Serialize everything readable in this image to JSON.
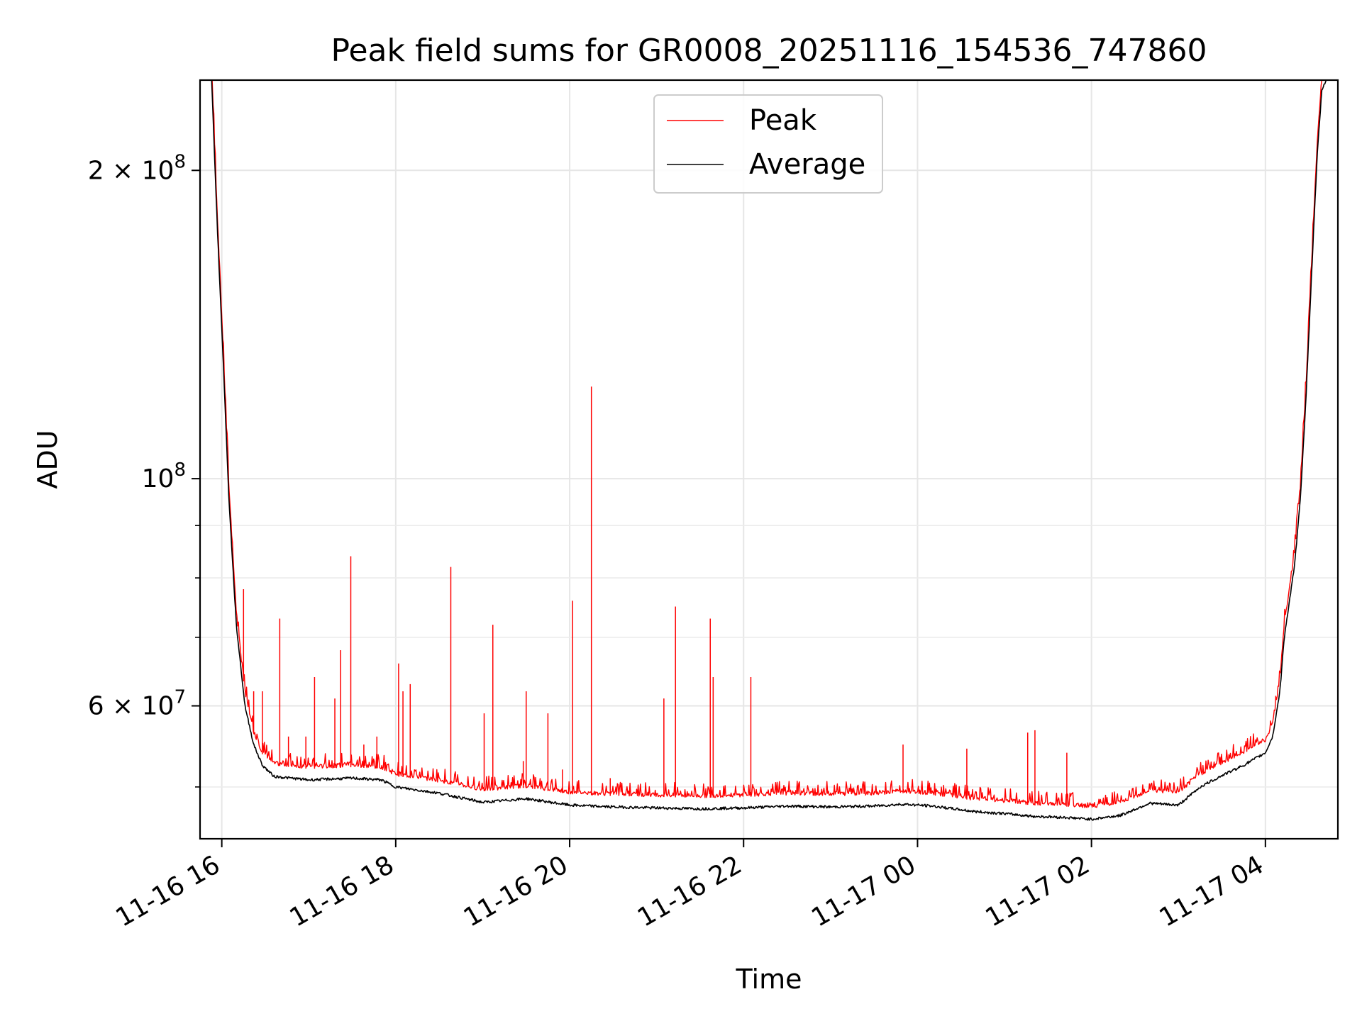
{
  "chart_data": {
    "type": "line",
    "title": "Peak field sums for GR0008_20251116_154536_747860",
    "xlabel": "Time",
    "ylabel": "ADU",
    "y_scale": "log",
    "xlim": [
      "2025-11-16T15:45",
      "2025-11-17T04:50"
    ],
    "ylim": [
      44500000,
      245000000
    ],
    "grid": true,
    "legend_position": "top-center",
    "x_ticks": [
      {
        "t": "2025-11-16T16:00",
        "label": "11-16 16"
      },
      {
        "t": "2025-11-16T18:00",
        "label": "11-16 18"
      },
      {
        "t": "2025-11-16T20:00",
        "label": "11-16 20"
      },
      {
        "t": "2025-11-16T22:00",
        "label": "11-16 22"
      },
      {
        "t": "2025-11-17T00:00",
        "label": "11-17 00"
      },
      {
        "t": "2025-11-17T02:00",
        "label": "11-17 02"
      },
      {
        "t": "2025-11-17T04:00",
        "label": "11-17 04"
      }
    ],
    "y_ticks_major": [
      {
        "v": 60000000,
        "mantissa": "6",
        "exp": "7"
      },
      {
        "v": 100000000,
        "mantissa": "",
        "exp": "8"
      },
      {
        "v": 200000000,
        "mantissa": "2",
        "exp": "8"
      }
    ],
    "y_ticks_minor": [
      50000000,
      70000000,
      80000000,
      90000000
    ],
    "series": [
      {
        "name": "Average",
        "color": "#000000",
        "points": [
          [
            "2025-11-16T15:53",
            245000000
          ],
          [
            "2025-11-16T15:57",
            175000000
          ],
          [
            "2025-11-16T16:01",
            130000000
          ],
          [
            "2025-11-16T16:05",
            95000000
          ],
          [
            "2025-11-16T16:10",
            72000000
          ],
          [
            "2025-11-16T16:16",
            60000000
          ],
          [
            "2025-11-16T16:22",
            55000000
          ],
          [
            "2025-11-16T16:28",
            52500000
          ],
          [
            "2025-11-16T16:36",
            51200000
          ],
          [
            "2025-11-16T17:00",
            50800000
          ],
          [
            "2025-11-16T17:30",
            51000000
          ],
          [
            "2025-11-16T17:50",
            50800000
          ],
          [
            "2025-11-16T18:00",
            50000000
          ],
          [
            "2025-11-16T18:30",
            49300000
          ],
          [
            "2025-11-16T19:00",
            48300000
          ],
          [
            "2025-11-16T19:30",
            48700000
          ],
          [
            "2025-11-16T20:00",
            48000000
          ],
          [
            "2025-11-16T20:30",
            47800000
          ],
          [
            "2025-11-16T21:00",
            47700000
          ],
          [
            "2025-11-16T21:30",
            47600000
          ],
          [
            "2025-11-16T22:00",
            47700000
          ],
          [
            "2025-11-16T22:30",
            47900000
          ],
          [
            "2025-11-16T23:00",
            47800000
          ],
          [
            "2025-11-16T23:30",
            47900000
          ],
          [
            "2025-11-16T23:50",
            48100000
          ],
          [
            "2025-11-17T00:10",
            47900000
          ],
          [
            "2025-11-17T00:40",
            47300000
          ],
          [
            "2025-11-17T01:00",
            47100000
          ],
          [
            "2025-11-17T01:20",
            46800000
          ],
          [
            "2025-11-17T01:40",
            46700000
          ],
          [
            "2025-11-17T02:00",
            46500000
          ],
          [
            "2025-11-17T02:20",
            46900000
          ],
          [
            "2025-11-17T02:40",
            48200000
          ],
          [
            "2025-11-17T03:00",
            48000000
          ],
          [
            "2025-11-17T03:15",
            50000000
          ],
          [
            "2025-11-17T03:30",
            51300000
          ],
          [
            "2025-11-17T03:45",
            52500000
          ],
          [
            "2025-11-17T04:00",
            54000000
          ],
          [
            "2025-11-17T04:05",
            56000000
          ],
          [
            "2025-11-17T04:10",
            62000000
          ],
          [
            "2025-11-17T04:13",
            70000000
          ],
          [
            "2025-11-17T04:20",
            82000000
          ],
          [
            "2025-11-17T04:24",
            95000000
          ],
          [
            "2025-11-17T04:28",
            120000000
          ],
          [
            "2025-11-17T04:32",
            160000000
          ],
          [
            "2025-11-17T04:36",
            210000000
          ],
          [
            "2025-11-17T04:39",
            240000000
          ],
          [
            "2025-11-17T04:42",
            245000000
          ]
        ]
      },
      {
        "name": "Peak",
        "color": "#ff0000",
        "baseline_offset": 1.025,
        "spikes": [
          [
            "2025-11-16T16:15",
            78000000
          ],
          [
            "2025-11-16T16:22",
            62000000
          ],
          [
            "2025-11-16T16:28",
            62000000
          ],
          [
            "2025-11-16T16:40",
            73000000
          ],
          [
            "2025-11-16T16:46",
            56000000
          ],
          [
            "2025-11-16T16:58",
            56000000
          ],
          [
            "2025-11-16T17:04",
            64000000
          ],
          [
            "2025-11-16T17:18",
            61000000
          ],
          [
            "2025-11-16T17:22",
            68000000
          ],
          [
            "2025-11-16T17:29",
            84000000
          ],
          [
            "2025-11-16T17:38",
            55000000
          ],
          [
            "2025-11-16T17:47",
            56000000
          ],
          [
            "2025-11-16T18:02",
            66000000
          ],
          [
            "2025-11-16T18:05",
            62000000
          ],
          [
            "2025-11-16T18:10",
            63000000
          ],
          [
            "2025-11-16T18:38",
            82000000
          ],
          [
            "2025-11-16T19:01",
            59000000
          ],
          [
            "2025-11-16T19:07",
            72000000
          ],
          [
            "2025-11-16T19:28",
            53000000
          ],
          [
            "2025-11-16T19:30",
            62000000
          ],
          [
            "2025-11-16T19:45",
            59000000
          ],
          [
            "2025-11-16T19:55",
            52000000
          ],
          [
            "2025-11-16T20:02",
            76000000
          ],
          [
            "2025-11-16T20:15",
            123000000
          ],
          [
            "2025-11-16T20:28",
            51000000
          ],
          [
            "2025-11-16T21:05",
            61000000
          ],
          [
            "2025-11-16T21:13",
            75000000
          ],
          [
            "2025-11-16T21:37",
            73000000
          ],
          [
            "2025-11-16T21:39",
            64000000
          ],
          [
            "2025-11-16T22:05",
            64000000
          ],
          [
            "2025-11-16T22:48",
            49500000
          ],
          [
            "2025-11-16T23:50",
            55000000
          ],
          [
            "2025-11-17T00:34",
            54500000
          ],
          [
            "2025-11-17T01:16",
            56500000
          ],
          [
            "2025-11-17T01:21",
            56800000
          ],
          [
            "2025-11-17T01:43",
            54000000
          ]
        ]
      }
    ]
  }
}
